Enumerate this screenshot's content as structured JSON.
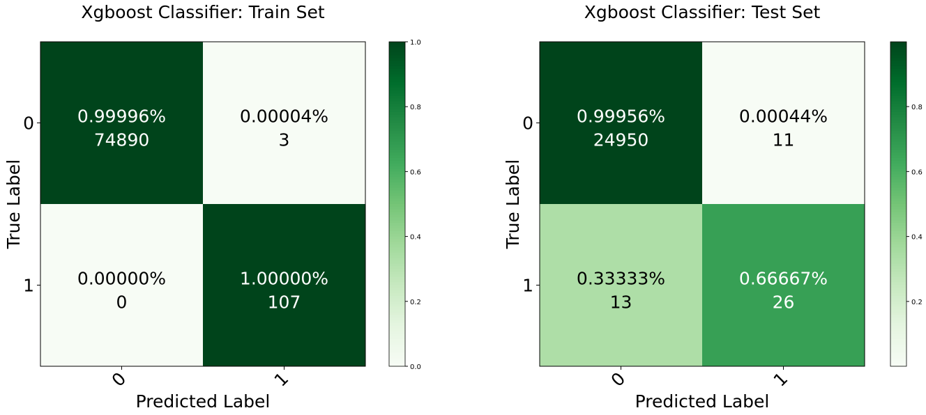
{
  "chart_data": [
    {
      "type": "heatmap",
      "title": "Xgboost Classifier: Train Set",
      "xlabel": "Predicted Label",
      "ylabel": "True Label",
      "x_categories": [
        "0",
        "1"
      ],
      "y_categories": [
        "0",
        "1"
      ],
      "cells": [
        [
          {
            "rate": 0.99996,
            "rate_label": "0.99996%",
            "count": 74890
          },
          {
            "rate": 4e-05,
            "rate_label": "0.00004%",
            "count": 3
          }
        ],
        [
          {
            "rate": 0.0,
            "rate_label": "0.00000%",
            "count": 0
          },
          {
            "rate": 1.0,
            "rate_label": "1.00000%",
            "count": 107
          }
        ]
      ],
      "colorbar": {
        "range": [
          0.0,
          1.0
        ],
        "ticks": [
          "0.0",
          "0.2",
          "0.4",
          "0.6",
          "0.8",
          "1.0"
        ],
        "tick_values": [
          0.0,
          0.2,
          0.4,
          0.6,
          0.8,
          1.0
        ],
        "colormap": "Greens"
      }
    },
    {
      "type": "heatmap",
      "title": "Xgboost Classifier: Test Set",
      "xlabel": "Predicted Label",
      "ylabel": "True Label",
      "x_categories": [
        "0",
        "1"
      ],
      "y_categories": [
        "0",
        "1"
      ],
      "cells": [
        [
          {
            "rate": 0.99956,
            "rate_label": "0.99956%",
            "count": 24950
          },
          {
            "rate": 0.00044,
            "rate_label": "0.00044%",
            "count": 11
          }
        ],
        [
          {
            "rate": 0.33333,
            "rate_label": "0.33333%",
            "count": 13
          },
          {
            "rate": 0.66667,
            "rate_label": "0.66667%",
            "count": 26
          }
        ]
      ],
      "colorbar": {
        "range": [
          0.00044,
          0.99956
        ],
        "ticks": [
          "0.2",
          "0.4",
          "0.6",
          "0.8"
        ],
        "tick_values": [
          0.2,
          0.4,
          0.6,
          0.8
        ],
        "colormap": "Greens"
      }
    }
  ],
  "colors": {
    "greens_scale": [
      "#f7fcf5",
      "#e5f5e0",
      "#c7e9c0",
      "#a1d99b",
      "#74c476",
      "#41ab5d",
      "#238b45",
      "#006d2c",
      "#00441b"
    ],
    "axis": "#000000",
    "text_dark": "#000000",
    "text_light": "#ffffff"
  }
}
